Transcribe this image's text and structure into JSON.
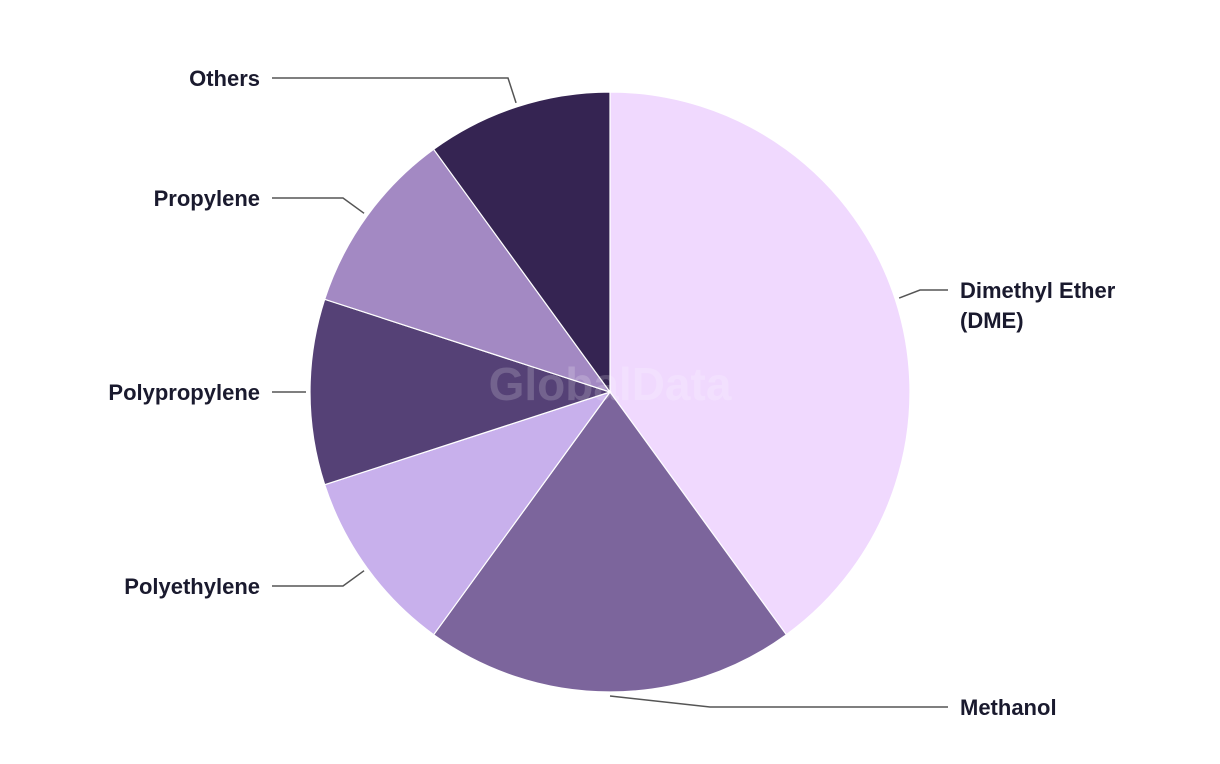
{
  "chart_data": {
    "type": "pie",
    "title": "",
    "start": "top",
    "direction": "clockwise",
    "slices": [
      {
        "label": "Dimethyl Ether (DME)",
        "label_lines": [
          "Dimethyl Ether",
          "(DME)"
        ],
        "value": 40,
        "color": "#f0d9fe"
      },
      {
        "label": "Methanol",
        "label_lines": [
          "Methanol"
        ],
        "value": 20,
        "color": "#7c659c"
      },
      {
        "label": "Polyethylene",
        "label_lines": [
          "Polyethylene"
        ],
        "value": 10,
        "color": "#c8b0ec"
      },
      {
        "label": "Polypropylene",
        "label_lines": [
          "Polypropylene"
        ],
        "value": 10,
        "color": "#554176"
      },
      {
        "label": "Propylene",
        "label_lines": [
          "Propylene"
        ],
        "value": 10,
        "color": "#a389c3"
      },
      {
        "label": "Others",
        "label_lines": [
          "Others"
        ],
        "value": 10,
        "color": "#352452"
      }
    ],
    "legend": "none",
    "label_style": "outside with leader lines"
  },
  "watermark": "GlobalData"
}
